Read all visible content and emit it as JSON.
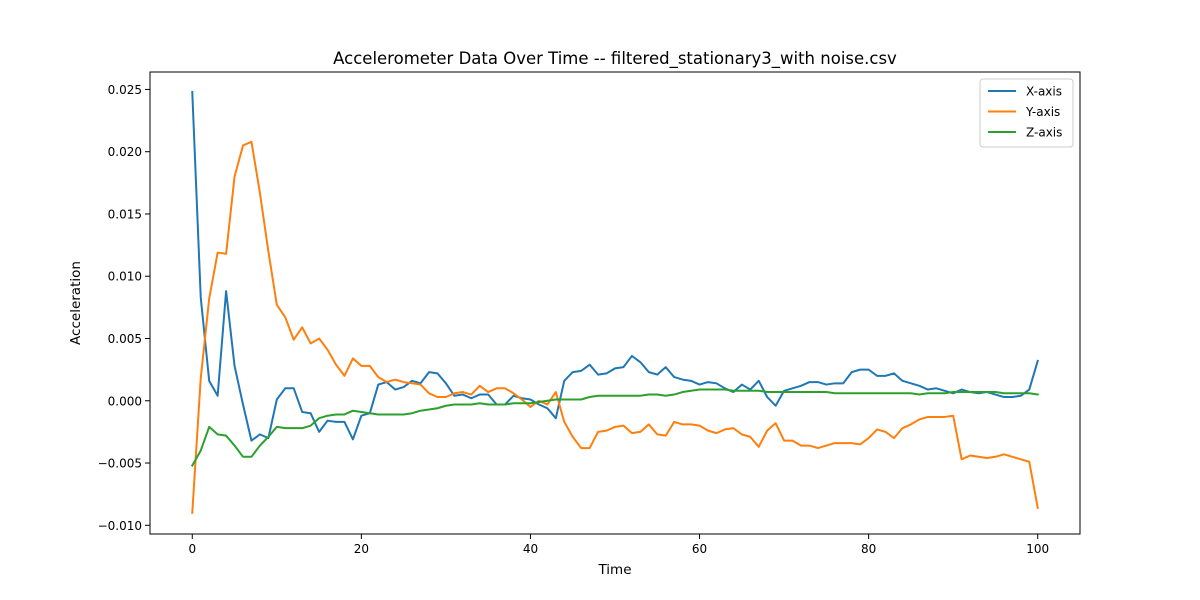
{
  "chart_data": {
    "type": "line",
    "title": "Accelerometer Data Over Time -- filtered_stationary3_with noise.csv",
    "xlabel": "Time",
    "ylabel": "Acceleration",
    "xlim": [
      -5,
      105
    ],
    "ylim": [
      -0.0107,
      0.0264
    ],
    "grid": false,
    "legend_position": "top-right",
    "x_ticks": [
      0,
      20,
      40,
      60,
      80,
      100
    ],
    "x_tick_labels": [
      "0",
      "20",
      "40",
      "60",
      "80",
      "100"
    ],
    "y_ticks": [
      -0.01,
      -0.005,
      0.0,
      0.005,
      0.01,
      0.015,
      0.02,
      0.025
    ],
    "y_tick_labels": [
      "−0.010",
      "−0.005",
      "0.000",
      "0.005",
      "0.010",
      "0.015",
      "0.020",
      "0.025"
    ],
    "x": [
      0,
      1,
      2,
      3,
      4,
      5,
      6,
      7,
      8,
      9,
      10,
      11,
      12,
      13,
      14,
      15,
      16,
      17,
      18,
      19,
      20,
      21,
      22,
      23,
      24,
      25,
      26,
      27,
      28,
      29,
      30,
      31,
      32,
      33,
      34,
      35,
      36,
      37,
      38,
      39,
      40,
      41,
      42,
      43,
      44,
      45,
      46,
      47,
      48,
      49,
      50,
      51,
      52,
      53,
      54,
      55,
      56,
      57,
      58,
      59,
      60,
      61,
      62,
      63,
      64,
      65,
      66,
      67,
      68,
      69,
      70,
      71,
      72,
      73,
      74,
      75,
      76,
      77,
      78,
      79,
      80,
      81,
      82,
      83,
      84,
      85,
      86,
      87,
      88,
      89,
      90,
      91,
      92,
      93,
      94,
      95,
      96,
      97,
      98,
      99,
      100
    ],
    "series": [
      {
        "name": "X-axis",
        "color": "#1f77b4",
        "values": [
          0.0248,
          0.0083,
          0.0016,
          0.0004,
          0.0088,
          0.0028,
          -0.0003,
          -0.0032,
          -0.0027,
          -0.003,
          0.0001,
          0.001,
          0.001,
          -0.0009,
          -0.001,
          -0.0025,
          -0.0016,
          -0.0017,
          -0.0017,
          -0.0031,
          -0.0012,
          -0.001,
          0.0013,
          0.0015,
          0.0009,
          0.0011,
          0.0016,
          0.0014,
          0.0023,
          0.0022,
          0.0014,
          0.0004,
          0.0005,
          0.0002,
          0.0005,
          0.0005,
          -0.0003,
          -0.0003,
          0.0004,
          0.0002,
          0.0001,
          -0.0003,
          -0.0006,
          -0.0014,
          0.0016,
          0.0023,
          0.0024,
          0.0029,
          0.0021,
          0.0022,
          0.0026,
          0.0027,
          0.0036,
          0.0031,
          0.0023,
          0.0021,
          0.0027,
          0.0019,
          0.0017,
          0.0016,
          0.0013,
          0.0015,
          0.0014,
          0.001,
          0.0007,
          0.0013,
          0.0009,
          0.0016,
          0.0003,
          -0.0004,
          0.0008,
          0.001,
          0.0012,
          0.0015,
          0.0015,
          0.0013,
          0.0014,
          0.0014,
          0.0023,
          0.0025,
          0.0025,
          0.002,
          0.002,
          0.0022,
          0.0016,
          0.0014,
          0.0012,
          0.0009,
          0.001,
          0.0008,
          0.0006,
          0.0009,
          0.0007,
          0.0006,
          0.0007,
          0.0005,
          0.0003,
          0.0003,
          0.0004,
          0.0009,
          0.0032
        ]
      },
      {
        "name": "Y-axis",
        "color": "#ff7f0e",
        "values": [
          -0.009,
          0.0018,
          0.0082,
          0.0119,
          0.0118,
          0.018,
          0.0205,
          0.0208,
          0.0167,
          0.012,
          0.0077,
          0.0067,
          0.0049,
          0.0059,
          0.0046,
          0.005,
          0.0041,
          0.0029,
          0.002,
          0.0034,
          0.0028,
          0.0028,
          0.0019,
          0.0015,
          0.0017,
          0.0015,
          0.0014,
          0.0013,
          0.0006,
          0.0003,
          0.0003,
          0.0006,
          0.0007,
          0.0005,
          0.0012,
          0.0007,
          0.001,
          0.001,
          0.0006,
          0.0001,
          -0.0005,
          0.0,
          -0.0003,
          0.0007,
          -0.0017,
          -0.0029,
          -0.0038,
          -0.0038,
          -0.0025,
          -0.0024,
          -0.0021,
          -0.002,
          -0.0026,
          -0.0025,
          -0.0019,
          -0.0027,
          -0.0028,
          -0.0017,
          -0.0019,
          -0.0019,
          -0.002,
          -0.0024,
          -0.0026,
          -0.0023,
          -0.0022,
          -0.0027,
          -0.0029,
          -0.0037,
          -0.0024,
          -0.0018,
          -0.0032,
          -0.0032,
          -0.0036,
          -0.0036,
          -0.0038,
          -0.0036,
          -0.0034,
          -0.0034,
          -0.0034,
          -0.0035,
          -0.003,
          -0.0023,
          -0.0025,
          -0.003,
          -0.0022,
          -0.0019,
          -0.0015,
          -0.0013,
          -0.0013,
          -0.0013,
          -0.0012,
          -0.0047,
          -0.0044,
          -0.0045,
          -0.0046,
          -0.0045,
          -0.0043,
          -0.0045,
          -0.0047,
          -0.0049,
          -0.0086
        ]
      },
      {
        "name": "Z-axis",
        "color": "#2ca02c",
        "values": [
          -0.0052,
          -0.004,
          -0.0021,
          -0.0027,
          -0.0028,
          -0.0036,
          -0.0045,
          -0.0045,
          -0.0036,
          -0.0029,
          -0.0021,
          -0.0022,
          -0.0022,
          -0.0022,
          -0.002,
          -0.0014,
          -0.0012,
          -0.0011,
          -0.0011,
          -0.0008,
          -0.0009,
          -0.001,
          -0.0011,
          -0.0011,
          -0.0011,
          -0.0011,
          -0.001,
          -0.0008,
          -0.0007,
          -0.0006,
          -0.0004,
          -0.0003,
          -0.0003,
          -0.0003,
          -0.0002,
          -0.0003,
          -0.0003,
          -0.0003,
          -0.0002,
          -0.0002,
          -0.0002,
          -0.0001,
          0.0,
          0.0001,
          0.0001,
          0.0001,
          0.0001,
          0.0003,
          0.0004,
          0.0004,
          0.0004,
          0.0004,
          0.0004,
          0.0004,
          0.0005,
          0.0005,
          0.0004,
          0.0005,
          0.0007,
          0.0008,
          0.0009,
          0.0009,
          0.0009,
          0.0009,
          0.0008,
          0.0008,
          0.0008,
          0.0008,
          0.0007,
          0.0007,
          0.0007,
          0.0007,
          0.0007,
          0.0007,
          0.0007,
          0.0007,
          0.0006,
          0.0006,
          0.0006,
          0.0006,
          0.0006,
          0.0006,
          0.0006,
          0.0006,
          0.0006,
          0.0006,
          0.0005,
          0.0006,
          0.0006,
          0.0006,
          0.0007,
          0.0007,
          0.0007,
          0.0007,
          0.0007,
          0.0007,
          0.0006,
          0.0006,
          0.0006,
          0.0006,
          0.0005
        ]
      }
    ]
  }
}
